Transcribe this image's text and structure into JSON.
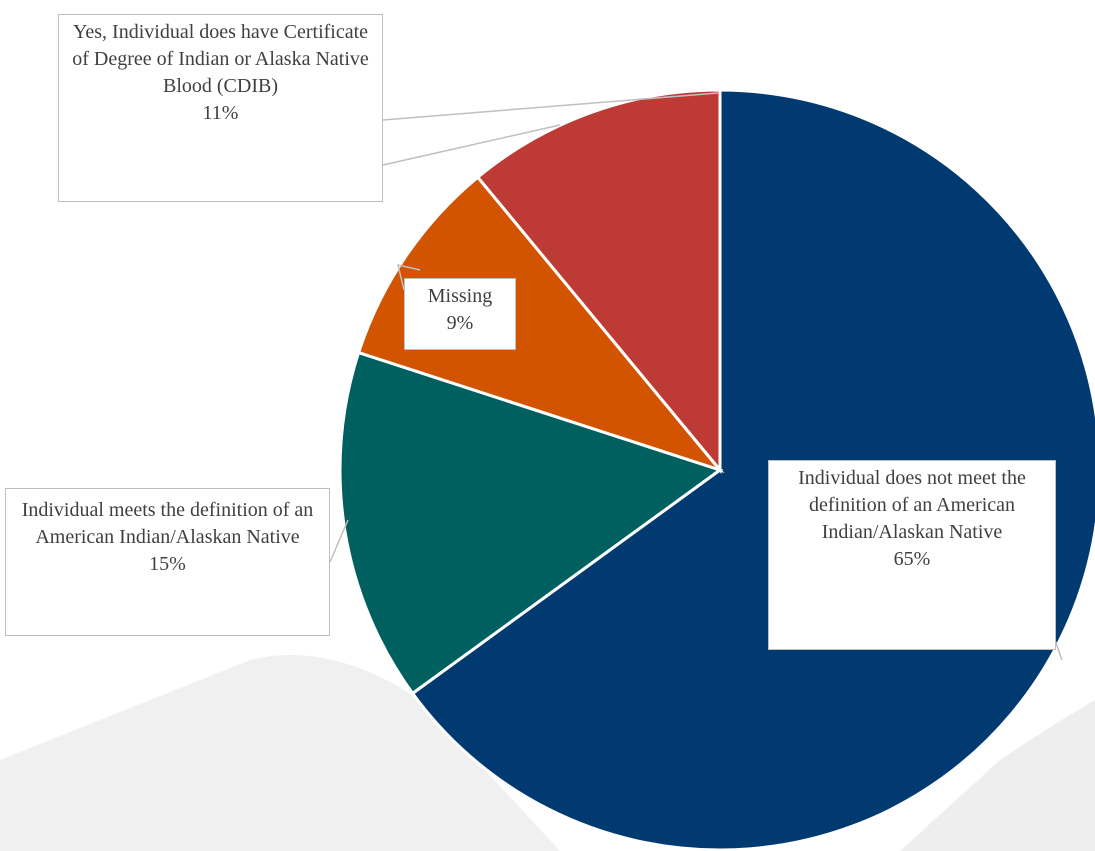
{
  "chart_data": {
    "type": "pie",
    "categories": [
      "Individual does not meet the definition of an American Indian/Alaskan Native",
      "Individual meets the definition of an American Indian/Alaskan Native",
      "Missing",
      "Yes, Individual does have Certificate of Degree of Indian or Alaska Native Blood (CDIB)"
    ],
    "values": [
      65,
      15,
      9,
      11
    ],
    "value_labels": [
      "65%",
      "15%",
      "9%",
      "11%"
    ],
    "colors": [
      "#003a70",
      "#005f5f",
      "#d35400",
      "#be3a34"
    ]
  }
}
